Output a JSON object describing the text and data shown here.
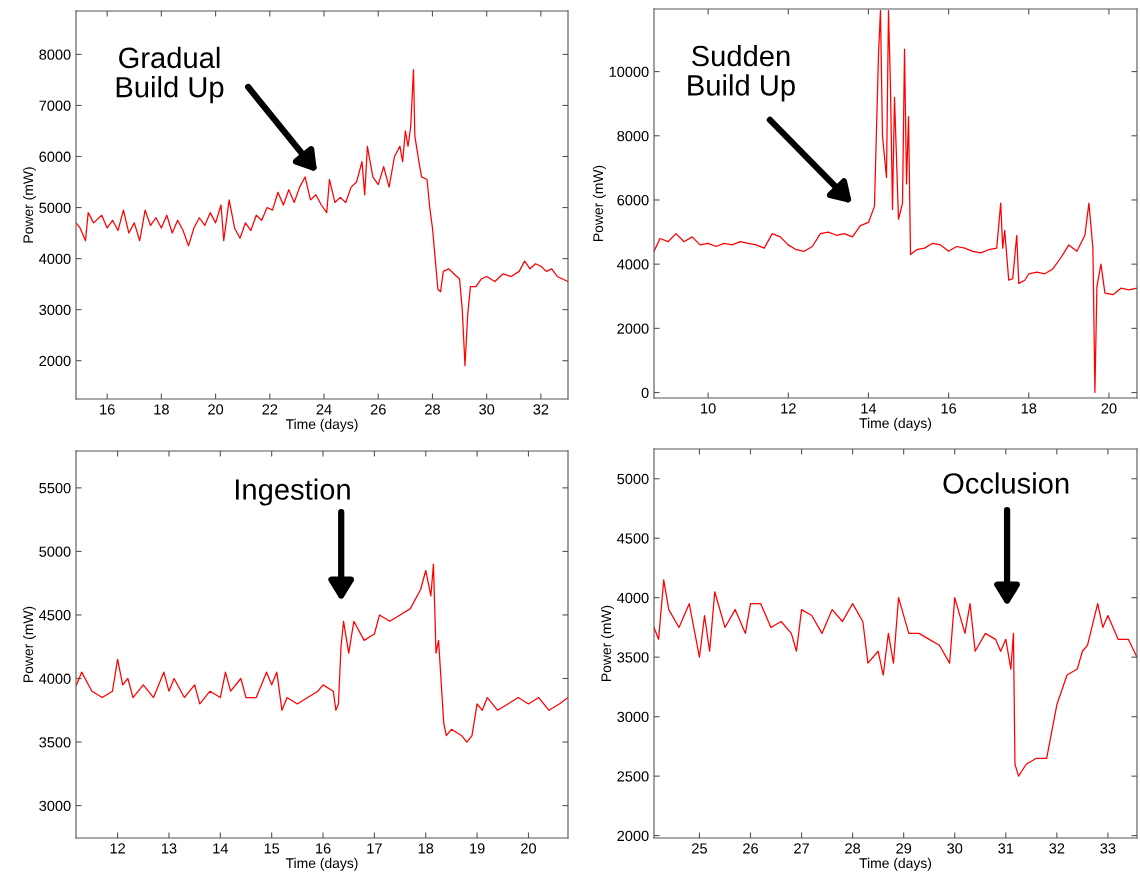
{
  "chart_data": [
    {
      "type": "line",
      "xlabel": "Time (days)",
      "ylabel": "Power (mW)",
      "xlim": [
        14.85,
        33
      ],
      "ylim": [
        1250,
        8850
      ],
      "xticks": [
        16,
        18,
        20,
        22,
        24,
        26,
        28,
        30,
        32
      ],
      "yticks": [
        2000,
        3000,
        4000,
        5000,
        6000,
        7000,
        8000
      ],
      "grid": false,
      "legend": false,
      "annotations": [
        "Gradual\nBuild Up"
      ],
      "x": [
        14.85,
        15.0,
        15.2,
        15.3,
        15.5,
        15.8,
        16.0,
        16.2,
        16.4,
        16.6,
        16.8,
        17.0,
        17.2,
        17.4,
        17.6,
        17.8,
        18.0,
        18.2,
        18.4,
        18.6,
        18.8,
        19.0,
        19.2,
        19.4,
        19.6,
        19.8,
        20.0,
        20.2,
        20.3,
        20.5,
        20.7,
        20.9,
        21.1,
        21.3,
        21.5,
        21.7,
        21.9,
        22.1,
        22.3,
        22.5,
        22.7,
        22.9,
        23.1,
        23.3,
        23.5,
        23.7,
        23.9,
        24.1,
        24.2,
        24.4,
        24.6,
        24.8,
        25.0,
        25.2,
        25.4,
        25.5,
        25.6,
        25.8,
        26.0,
        26.2,
        26.4,
        26.6,
        26.8,
        26.9,
        27.0,
        27.1,
        27.2,
        27.3,
        27.35,
        27.5,
        27.6,
        27.8,
        27.9,
        28.0,
        28.1,
        28.2,
        28.3,
        28.4,
        28.6,
        28.8,
        29.0,
        29.1,
        29.2,
        29.3,
        29.4,
        29.6,
        29.8,
        30.0,
        30.3,
        30.6,
        30.9,
        31.2,
        31.4,
        31.6,
        31.8,
        32.0,
        32.2,
        32.4,
        32.6,
        32.8,
        33.0
      ],
      "series": [
        {
          "color": "#ff0000",
          "values": [
            4700,
            4600,
            4350,
            4900,
            4700,
            4850,
            4600,
            4750,
            4550,
            4950,
            4500,
            4700,
            4350,
            4950,
            4650,
            4800,
            4600,
            4850,
            4500,
            4750,
            4550,
            4250,
            4600,
            4800,
            4650,
            4900,
            4700,
            5050,
            4350,
            5150,
            4600,
            4400,
            4700,
            4550,
            4850,
            4750,
            5000,
            4950,
            5300,
            5050,
            5350,
            5100,
            5400,
            5600,
            5150,
            5250,
            5050,
            4900,
            5550,
            5100,
            5200,
            5100,
            5400,
            5500,
            5900,
            5250,
            6200,
            5600,
            5450,
            5800,
            5400,
            6000,
            6200,
            5900,
            6500,
            6200,
            6600,
            7700,
            6400,
            5900,
            5600,
            5550,
            5000,
            4600,
            4000,
            3400,
            3350,
            3750,
            3800,
            3700,
            3600,
            3000,
            1900,
            2900,
            3450,
            3450,
            3600,
            3650,
            3550,
            3700,
            3650,
            3750,
            3950,
            3800,
            3900,
            3850,
            3750,
            3800,
            3650,
            3600,
            3550
          ]
        }
      ]
    },
    {
      "type": "line",
      "xlabel": "Time (days)",
      "ylabel": "Power (mW)",
      "xlim": [
        8.65,
        20.7
      ],
      "ylim": [
        -170,
        11950
      ],
      "xticks": [
        10,
        12,
        14,
        16,
        18,
        20
      ],
      "yticks": [
        0,
        2000,
        4000,
        6000,
        8000,
        10000
      ],
      "grid": false,
      "legend": false,
      "annotations": [
        "Sudden\nBuild Up"
      ],
      "x": [
        8.65,
        8.8,
        9.0,
        9.2,
        9.4,
        9.6,
        9.8,
        10.0,
        10.2,
        10.4,
        10.6,
        10.8,
        11.0,
        11.2,
        11.4,
        11.6,
        11.8,
        12.0,
        12.2,
        12.4,
        12.6,
        12.8,
        13.0,
        13.2,
        13.4,
        13.6,
        13.8,
        14.0,
        14.15,
        14.25,
        14.3,
        14.35,
        14.45,
        14.5,
        14.55,
        14.6,
        14.65,
        14.75,
        14.85,
        14.9,
        14.95,
        15.0,
        15.05,
        15.2,
        15.4,
        15.6,
        15.8,
        16.0,
        16.2,
        16.4,
        16.6,
        16.8,
        17.0,
        17.2,
        17.3,
        17.35,
        17.4,
        17.5,
        17.6,
        17.7,
        17.75,
        17.9,
        18.0,
        18.2,
        18.4,
        18.6,
        18.8,
        19.0,
        19.2,
        19.4,
        19.5,
        19.6,
        19.65,
        19.7,
        19.8,
        19.9,
        20.1,
        20.3,
        20.5,
        20.7
      ],
      "series": [
        {
          "color": "#ff0000",
          "values": [
            4400,
            4800,
            4700,
            4950,
            4700,
            4850,
            4600,
            4650,
            4550,
            4650,
            4600,
            4700,
            4650,
            4600,
            4500,
            4950,
            4850,
            4600,
            4450,
            4400,
            4550,
            4950,
            5000,
            4900,
            4950,
            4850,
            5200,
            5300,
            5800,
            10500,
            11900,
            8000,
            6700,
            11900,
            9500,
            5700,
            9200,
            5400,
            5900,
            10700,
            6500,
            8600,
            4300,
            4450,
            4500,
            4650,
            4600,
            4400,
            4550,
            4500,
            4400,
            4350,
            4450,
            4500,
            5900,
            4500,
            5050,
            3500,
            3550,
            4900,
            3400,
            3500,
            3700,
            3750,
            3700,
            3850,
            4200,
            4600,
            4400,
            4900,
            5900,
            4500,
            0,
            3300,
            4000,
            3100,
            3050,
            3250,
            3200,
            3250
          ]
        }
      ]
    },
    {
      "type": "line",
      "xlabel": "Time (days)",
      "ylabel": "Power (mW)",
      "xlim": [
        11.19,
        20.77
      ],
      "ylim": [
        2745,
        5790
      ],
      "xticks": [
        12,
        13,
        14,
        15,
        16,
        17,
        18,
        19,
        20
      ],
      "yticks": [
        3000,
        3500,
        4000,
        4500,
        5000,
        5500
      ],
      "grid": false,
      "legend": false,
      "annotations": [
        "Ingestion"
      ],
      "x": [
        11.2,
        11.3,
        11.5,
        11.7,
        11.9,
        12.0,
        12.1,
        12.2,
        12.3,
        12.5,
        12.7,
        12.9,
        13.0,
        13.1,
        13.3,
        13.5,
        13.6,
        13.8,
        14.0,
        14.1,
        14.2,
        14.4,
        14.5,
        14.7,
        14.9,
        15.0,
        15.1,
        15.2,
        15.3,
        15.5,
        15.7,
        15.9,
        16.0,
        16.2,
        16.25,
        16.3,
        16.35,
        16.4,
        16.5,
        16.6,
        16.8,
        17.0,
        17.1,
        17.3,
        17.5,
        17.7,
        17.9,
        18.0,
        18.1,
        18.15,
        18.2,
        18.25,
        18.35,
        18.4,
        18.5,
        18.7,
        18.8,
        18.9,
        19.0,
        19.1,
        19.2,
        19.4,
        19.6,
        19.8,
        20.0,
        20.2,
        20.4,
        20.6,
        20.77
      ],
      "series": [
        {
          "color": "#ff0000",
          "values": [
            3950,
            4050,
            3900,
            3850,
            3900,
            4150,
            3950,
            4000,
            3850,
            3950,
            3850,
            4050,
            3900,
            4000,
            3850,
            3950,
            3800,
            3900,
            3850,
            4050,
            3900,
            4000,
            3850,
            3850,
            4050,
            3950,
            4050,
            3750,
            3850,
            3800,
            3850,
            3900,
            3950,
            3900,
            3750,
            3800,
            4250,
            4450,
            4200,
            4450,
            4300,
            4350,
            4500,
            4450,
            4500,
            4550,
            4700,
            4850,
            4650,
            4900,
            4200,
            4300,
            3650,
            3550,
            3600,
            3550,
            3500,
            3550,
            3800,
            3750,
            3850,
            3750,
            3800,
            3850,
            3800,
            3850,
            3750,
            3800,
            3850
          ]
        }
      ]
    },
    {
      "type": "line",
      "xlabel": "Time (days)",
      "ylabel": "Power (mW)",
      "xlim": [
        24.11,
        33.57
      ],
      "ylim": [
        1980,
        5250
      ],
      "xticks": [
        25,
        26,
        27,
        28,
        29,
        30,
        31,
        32,
        33
      ],
      "yticks": [
        2000,
        2500,
        3000,
        3500,
        4000,
        4500,
        5000
      ],
      "grid": false,
      "legend": false,
      "annotations": [
        "Occlusion"
      ],
      "x": [
        24.11,
        24.2,
        24.3,
        24.4,
        24.6,
        24.8,
        25.0,
        25.1,
        25.2,
        25.3,
        25.5,
        25.7,
        25.9,
        26.0,
        26.2,
        26.4,
        26.6,
        26.8,
        26.9,
        27.0,
        27.2,
        27.4,
        27.6,
        27.8,
        28.0,
        28.2,
        28.3,
        28.5,
        28.6,
        28.7,
        28.8,
        28.9,
        29.1,
        29.3,
        29.5,
        29.7,
        29.9,
        30.0,
        30.2,
        30.3,
        30.4,
        30.6,
        30.8,
        30.9,
        31.0,
        31.1,
        31.15,
        31.18,
        31.25,
        31.4,
        31.6,
        31.8,
        32.0,
        32.2,
        32.4,
        32.5,
        32.6,
        32.8,
        32.9,
        33.0,
        33.2,
        33.4,
        33.57
      ],
      "series": [
        {
          "color": "#ff0000",
          "values": [
            3750,
            3650,
            4150,
            3900,
            3750,
            3950,
            3500,
            3850,
            3550,
            4050,
            3750,
            3900,
            3700,
            3950,
            3950,
            3750,
            3800,
            3700,
            3550,
            3900,
            3850,
            3700,
            3900,
            3800,
            3950,
            3800,
            3450,
            3550,
            3350,
            3700,
            3450,
            4000,
            3700,
            3700,
            3650,
            3600,
            3450,
            4000,
            3700,
            3950,
            3550,
            3700,
            3650,
            3550,
            3650,
            3400,
            3700,
            2600,
            2500,
            2600,
            2650,
            2650,
            3100,
            3350,
            3400,
            3550,
            3600,
            3950,
            3750,
            3850,
            3650,
            3650,
            3500
          ]
        }
      ]
    }
  ]
}
